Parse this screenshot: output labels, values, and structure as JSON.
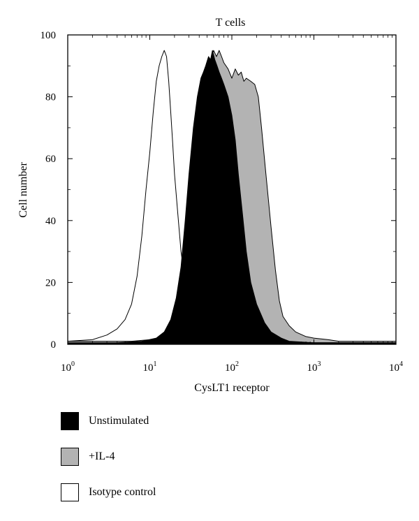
{
  "chart_data": {
    "type": "area",
    "title": "T cells",
    "xlabel": "CysLT1 receptor",
    "ylabel": "Cell number",
    "x_scale": "log10",
    "xlim": [
      1,
      10000
    ],
    "ylim": [
      0,
      100
    ],
    "x_ticks": [
      {
        "base": "10",
        "exp": "0",
        "value": 1
      },
      {
        "base": "10",
        "exp": "1",
        "value": 10
      },
      {
        "base": "10",
        "exp": "2",
        "value": 100
      },
      {
        "base": "10",
        "exp": "3",
        "value": 1000
      },
      {
        "base": "10",
        "exp": "4",
        "value": 10000
      }
    ],
    "y_ticks": [
      "0",
      "20",
      "40",
      "60",
      "80",
      "100"
    ],
    "series": [
      {
        "name": "+IL-4",
        "color": "#b3b3b3",
        "points": [
          [
            1,
            1
          ],
          [
            3,
            1
          ],
          [
            6,
            1
          ],
          [
            10,
            1.5
          ],
          [
            15,
            2
          ],
          [
            20,
            4
          ],
          [
            25,
            10
          ],
          [
            30,
            22
          ],
          [
            35,
            40
          ],
          [
            40,
            62
          ],
          [
            45,
            78
          ],
          [
            50,
            88
          ],
          [
            55,
            92
          ],
          [
            60,
            95
          ],
          [
            65,
            93
          ],
          [
            70,
            95
          ],
          [
            75,
            93
          ],
          [
            80,
            91
          ],
          [
            90,
            89
          ],
          [
            100,
            86
          ],
          [
            110,
            89
          ],
          [
            120,
            87
          ],
          [
            130,
            88
          ],
          [
            140,
            85
          ],
          [
            150,
            86
          ],
          [
            170,
            85
          ],
          [
            190,
            84
          ],
          [
            210,
            80
          ],
          [
            230,
            70
          ],
          [
            260,
            55
          ],
          [
            300,
            38
          ],
          [
            340,
            24
          ],
          [
            380,
            14
          ],
          [
            420,
            9
          ],
          [
            500,
            6
          ],
          [
            600,
            4
          ],
          [
            800,
            2.5
          ],
          [
            1000,
            2
          ],
          [
            1500,
            1.5
          ],
          [
            2000,
            1
          ],
          [
            4000,
            1
          ],
          [
            6000,
            1
          ],
          [
            10000,
            1
          ]
        ]
      },
      {
        "name": "Unstimulated",
        "color": "#000000",
        "points": [
          [
            1,
            0.5
          ],
          [
            4,
            0.5
          ],
          [
            8,
            1
          ],
          [
            12,
            2
          ],
          [
            15,
            4
          ],
          [
            18,
            8
          ],
          [
            21,
            15
          ],
          [
            24,
            25
          ],
          [
            27,
            40
          ],
          [
            30,
            55
          ],
          [
            34,
            70
          ],
          [
            38,
            80
          ],
          [
            42,
            86
          ],
          [
            45,
            88
          ],
          [
            48,
            90
          ],
          [
            52,
            93
          ],
          [
            55,
            92
          ],
          [
            58,
            95
          ],
          [
            62,
            92
          ],
          [
            66,
            90
          ],
          [
            70,
            88
          ],
          [
            75,
            86
          ],
          [
            80,
            84
          ],
          [
            90,
            80
          ],
          [
            100,
            74
          ],
          [
            110,
            66
          ],
          [
            120,
            55
          ],
          [
            135,
            42
          ],
          [
            150,
            30
          ],
          [
            170,
            20
          ],
          [
            200,
            13
          ],
          [
            250,
            7
          ],
          [
            300,
            4
          ],
          [
            400,
            2
          ],
          [
            500,
            1
          ],
          [
            1000,
            0.5
          ],
          [
            10000,
            0.5
          ]
        ]
      },
      {
        "name": "Isotype control",
        "color": "#ffffff",
        "points": [
          [
            1,
            1
          ],
          [
            2,
            1.5
          ],
          [
            3,
            3
          ],
          [
            4,
            5
          ],
          [
            5,
            8
          ],
          [
            6,
            13
          ],
          [
            7,
            22
          ],
          [
            8,
            35
          ],
          [
            9,
            50
          ],
          [
            10,
            62
          ],
          [
            11,
            75
          ],
          [
            12,
            85
          ],
          [
            13,
            90
          ],
          [
            14,
            93
          ],
          [
            15,
            95
          ],
          [
            16,
            93
          ],
          [
            17,
            85
          ],
          [
            18,
            75
          ],
          [
            19,
            65
          ],
          [
            20,
            55
          ],
          [
            22,
            42
          ],
          [
            24,
            30
          ],
          [
            27,
            20
          ],
          [
            30,
            12
          ],
          [
            35,
            6
          ],
          [
            40,
            3
          ],
          [
            50,
            1.5
          ],
          [
            70,
            1
          ],
          [
            100,
            0.5
          ],
          [
            1000,
            0.5
          ],
          [
            10000,
            0.5
          ]
        ]
      }
    ],
    "legend": {
      "position": "below",
      "items": [
        {
          "name": "Unstimulated",
          "color": "#000000"
        },
        {
          "name": "+IL-4",
          "color": "#b3b3b3"
        },
        {
          "name": "Isotype control",
          "color": "#ffffff"
        }
      ]
    }
  }
}
